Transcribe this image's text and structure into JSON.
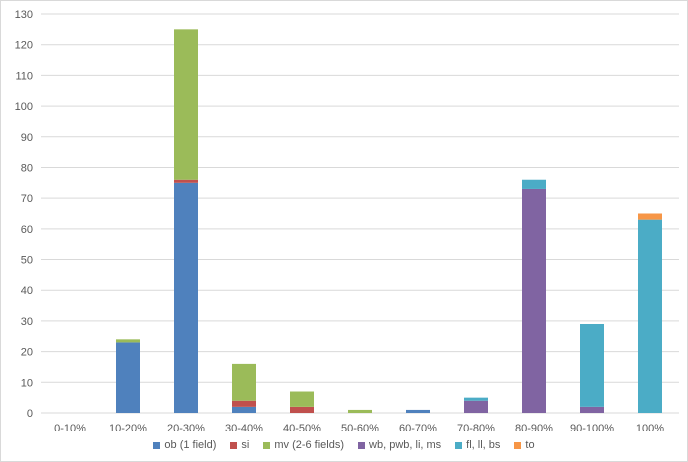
{
  "chart_data": {
    "type": "bar",
    "stacked": true,
    "title": "",
    "xlabel": "",
    "ylabel": "",
    "ylim": [
      0,
      130
    ],
    "yticks": [
      0,
      10,
      20,
      30,
      40,
      50,
      60,
      70,
      80,
      90,
      100,
      110,
      120,
      130
    ],
    "grid": true,
    "legend_position": "bottom",
    "categories": [
      "0-10%",
      "10-20%",
      "20-30%",
      "30-40%",
      "40-50%",
      "50-60%",
      "60-70%",
      "70-80%",
      "80-90%",
      "90-100%",
      "100%"
    ],
    "series": [
      {
        "name": "ob (1 field)",
        "color": "#4f81bd",
        "values": [
          0,
          23,
          75,
          2,
          0,
          0,
          1,
          0,
          0,
          0,
          0
        ]
      },
      {
        "name": "si",
        "color": "#c0504d",
        "values": [
          0,
          0,
          1,
          2,
          2,
          0,
          0,
          0,
          0,
          0,
          0
        ]
      },
      {
        "name": "mv (2-6 fields)",
        "color": "#9bbb59",
        "values": [
          0,
          1,
          49,
          12,
          5,
          1,
          0,
          0,
          0,
          0,
          0
        ]
      },
      {
        "name": "wb, pwb, li, ms",
        "color": "#8064a2",
        "values": [
          0,
          0,
          0,
          0,
          0,
          0,
          0,
          4,
          73,
          2,
          0
        ]
      },
      {
        "name": "fl, ll, bs",
        "color": "#4bacc6",
        "values": [
          0,
          0,
          0,
          0,
          0,
          0,
          0,
          1,
          3,
          27,
          63
        ]
      },
      {
        "name": "to",
        "color": "#f79646",
        "values": [
          0,
          0,
          0,
          0,
          0,
          0,
          0,
          0,
          0,
          0,
          2
        ]
      }
    ]
  }
}
